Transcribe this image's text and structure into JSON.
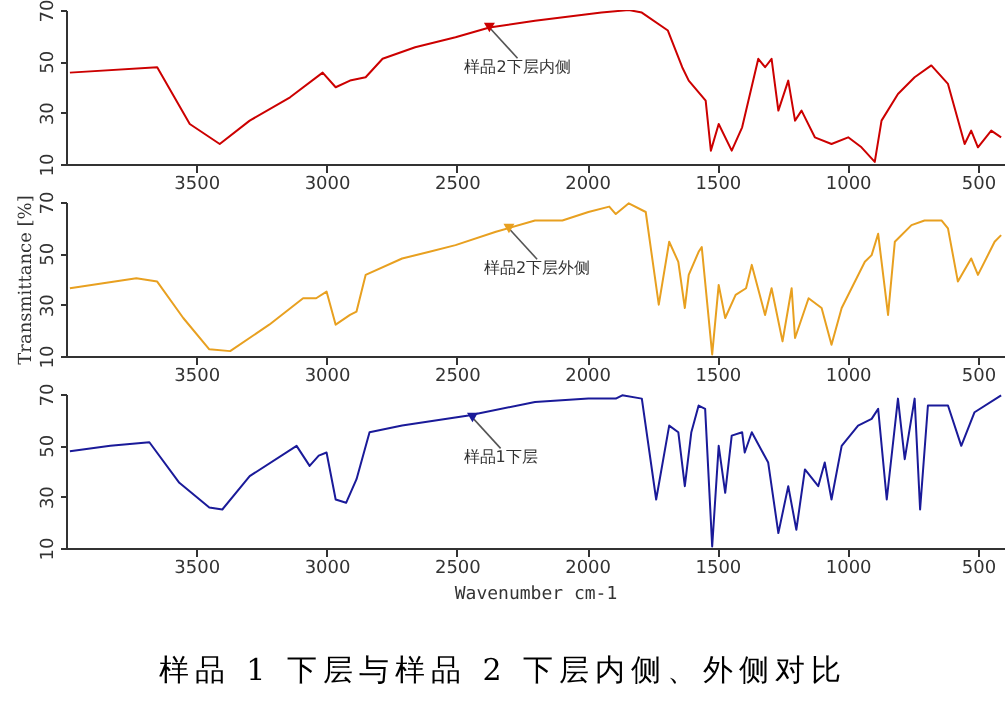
{
  "chart_data": [
    {
      "type": "line",
      "xlim": [
        4000,
        400
      ],
      "xticks": [
        3500,
        3000,
        2500,
        2000,
        1500,
        1000,
        500
      ],
      "ylim": [
        10,
        70
      ],
      "yticks": [
        10,
        30,
        50,
        70
      ],
      "grid": false,
      "marker": "none",
      "line_style": "solid",
      "x": [
        3985,
        3650,
        3525,
        3410,
        3295,
        3140,
        3015,
        2965,
        2910,
        2850,
        2785,
        2660,
        2505,
        2375,
        2200,
        1945,
        1840,
        1790,
        1690,
        1635,
        1610,
        1545,
        1525,
        1495,
        1445,
        1405,
        1343,
        1317,
        1292,
        1266,
        1228,
        1202,
        1177,
        1126,
        1062,
        998,
        947,
        896,
        870,
        807,
        743,
        679,
        615,
        551,
        526,
        500,
        449,
        411
      ],
      "series": [
        {
          "color": "#cc0000",
          "values": [
            45.6,
            47.7,
            25.6,
            17.8,
            26.9,
            36,
            45.6,
            39.9,
            42.5,
            43.8,
            51,
            55.5,
            59.4,
            63.2,
            65.8,
            69,
            70,
            69,
            62,
            47.7,
            42.5,
            34.7,
            15.2,
            25.6,
            15.2,
            24.3,
            51,
            47.7,
            51,
            30.8,
            42.5,
            26.9,
            30.8,
            20.4,
            17.8,
            20.4,
            16.5,
            10.8,
            26.9,
            37.3,
            43.8,
            48.4,
            41.2,
            17.8,
            23,
            16.5,
            23,
            20.4
          ]
        }
      ],
      "annotations": [
        {
          "text": "样品2下层内侧",
          "x": 2375,
          "y": 63.2
        }
      ]
    },
    {
      "type": "line",
      "xlim": [
        4000,
        400
      ],
      "xticks": [
        3500,
        3000,
        2500,
        2000,
        1500,
        1000,
        500
      ],
      "ylim": [
        10,
        70
      ],
      "yticks": [
        10,
        30,
        50,
        70
      ],
      "ylabel": "Transmittance [%]",
      "grid": false,
      "marker": "none",
      "line_style": "solid",
      "x": [
        3985,
        3730,
        3650,
        3550,
        3450,
        3370,
        3220,
        3090,
        3040,
        3000,
        2965,
        2910,
        2885,
        2850,
        2710,
        2605,
        2505,
        2350,
        2200,
        2095,
        1995,
        1915,
        1890,
        1840,
        1775,
        1725,
        1685,
        1650,
        1625,
        1610,
        1572,
        1560,
        1520,
        1495,
        1470,
        1430,
        1390,
        1368,
        1317,
        1292,
        1250,
        1215,
        1202,
        1150,
        1100,
        1062,
        1023,
        985,
        934,
        908,
        883,
        845,
        819,
        755,
        705,
        640,
        615,
        577,
        526,
        500,
        436,
        411
      ],
      "series": [
        {
          "color": "#e8a020",
          "values": [
            36.4,
            40.3,
            39,
            24.8,
            12.6,
            11.9,
            22.2,
            32.5,
            32.5,
            35.1,
            22.2,
            26,
            27.3,
            41.6,
            48,
            50.6,
            53.2,
            58.4,
            62.8,
            62.8,
            66.1,
            68.2,
            65.3,
            69.5,
            66.1,
            30,
            54.5,
            46.7,
            28.7,
            41.6,
            50.6,
            52.4,
            10.6,
            37.7,
            24.8,
            33.8,
            36.4,
            45.5,
            26,
            36.4,
            15.7,
            36.4,
            17,
            32.5,
            28.7,
            14.4,
            28.7,
            36.4,
            46.7,
            49.3,
            57.6,
            26,
            54.5,
            61,
            62.8,
            62.8,
            59.7,
            39,
            48,
            41.6,
            54.5,
            57.1
          ]
        }
      ],
      "annotations": [
        {
          "text": "样品2下层外侧",
          "x": 2300,
          "y": 59.7
        }
      ]
    },
    {
      "type": "line",
      "xlim": [
        4000,
        400
      ],
      "xticks": [
        3500,
        3000,
        2500,
        2000,
        1500,
        1000,
        500
      ],
      "ylim": [
        10,
        70
      ],
      "yticks": [
        10,
        30,
        50,
        70
      ],
      "xlabel": "Wavenumber cm-1",
      "grid": false,
      "marker": "none",
      "line_style": "solid",
      "x": [
        3985,
        3830,
        3680,
        3565,
        3450,
        3400,
        3295,
        3115,
        3065,
        3030,
        3000,
        2965,
        2925,
        2885,
        2835,
        2710,
        2455,
        2200,
        1995,
        1890,
        1865,
        1790,
        1735,
        1685,
        1650,
        1625,
        1600,
        1572,
        1547,
        1520,
        1495,
        1470,
        1445,
        1405,
        1395,
        1368,
        1305,
        1266,
        1228,
        1197,
        1164,
        1113,
        1088,
        1062,
        1023,
        960,
        908,
        883,
        850,
        807,
        781,
        743,
        722,
        692,
        615,
        564,
        513,
        411
      ],
      "series": [
        {
          "color": "#1a1a99",
          "values": [
            47.7,
            49.8,
            51.2,
            35.4,
            25.8,
            25,
            38,
            49.8,
            42,
            46,
            47.2,
            28.9,
            27.6,
            36.8,
            55.1,
            57.7,
            61.6,
            66.9,
            68.2,
            68.2,
            69.5,
            68.2,
            28.9,
            57.7,
            55.1,
            34.1,
            55.1,
            65.5,
            64.2,
            10.6,
            49.8,
            31.5,
            53.8,
            55.1,
            47.2,
            55.1,
            43.3,
            15.8,
            34.1,
            17.1,
            40.6,
            34.1,
            43.3,
            28.9,
            49.8,
            57.7,
            60.3,
            64.2,
            28.9,
            68.2,
            44.6,
            68.2,
            25,
            65.5,
            65.5,
            49.8,
            62.9,
            69.5
          ]
        }
      ],
      "annotations": [
        {
          "text": "样品1下层",
          "x": 2440,
          "y": 60.8
        },
        "样品 1 下层与样品 2 下层内侧、外侧对比"
      ]
    }
  ]
}
